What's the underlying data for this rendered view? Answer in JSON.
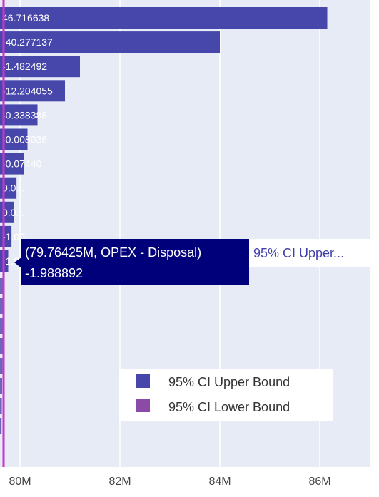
{
  "chart_data": {
    "type": "bar",
    "orientation": "horizontal",
    "x_tick_labels": [
      "80M",
      "82M",
      "84M",
      "86M"
    ],
    "x_ticks": [
      80000000,
      82000000,
      84000000,
      86000000
    ],
    "xlim": [
      79600000,
      87000000
    ],
    "baseline_x": 79600000,
    "series": [
      {
        "name": "95% CI Upper Bound",
        "color": "#4747ab",
        "values": [
          86150000,
          84000000,
          81200000,
          80900000,
          80350000,
          80150000,
          80080000,
          79930000,
          79880000,
          79830000,
          79764250
        ],
        "labels": [
          "46.716638",
          "-40.277137",
          "-1.482492",
          "-12.204055",
          "-0.338388",
          "-0.008036",
          "-0.07440",
          "0.0...",
          "0.0...",
          "-1.00...",
          "-1.988892"
        ]
      },
      {
        "name": "95% CI Lower Bound",
        "color": "#8a4aa6"
      }
    ],
    "legend_position": "bottom-right",
    "grid": true,
    "tooltip": {
      "line1": "(79.76425M, OPEX - Disposal)",
      "line2": "-1.988892",
      "series_label": "95% CI Upper..."
    }
  }
}
